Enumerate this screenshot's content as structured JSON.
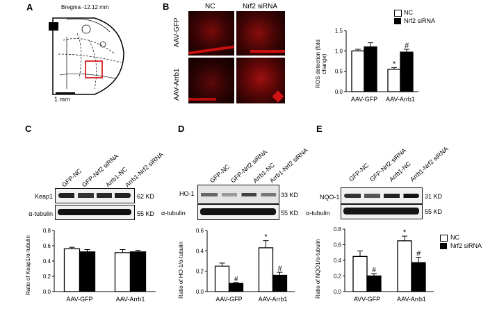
{
  "panelA": {
    "letter": "A",
    "bregma": "Bregma -12.12 mm",
    "scale": "1 mm"
  },
  "panelB": {
    "letter": "B",
    "cols": [
      "NC",
      "Nrf2 siRNA"
    ],
    "rows": [
      "AAV-GFP",
      "AAV-Arrb1"
    ],
    "legend": [
      "NC",
      "Nrf2 siRNA"
    ],
    "chart_data": {
      "type": "bar",
      "categories": [
        "AAV-GFP",
        "AAV-Arrb1"
      ],
      "series": [
        {
          "name": "NC",
          "values": [
            1.0,
            0.55
          ],
          "errors": [
            0.04,
            0.04
          ]
        },
        {
          "name": "Nrf2 siRNA",
          "values": [
            1.1,
            0.97
          ],
          "errors": [
            0.1,
            0.07
          ]
        }
      ],
      "ylabel": "ROS detection (fold change)",
      "ylim": [
        0,
        1.5
      ],
      "yticks": [
        "0.0",
        "0.5",
        "1.0",
        "1.5"
      ],
      "marks": [
        "*",
        "#"
      ]
    }
  },
  "panelC": {
    "letter": "C",
    "lanes": [
      "GFP-NC",
      "GFP-Nrf2 siRNA",
      "Arrb1-NC",
      "Arrb1-Nrf2 siRNA"
    ],
    "bands": [
      {
        "name": "Keap1",
        "kd": "62 KD"
      },
      {
        "name": "α-tubulin",
        "kd": "55 KD"
      }
    ],
    "chart_data": {
      "type": "bar",
      "categories": [
        "AAV-GFP",
        "AAV-Arrb1"
      ],
      "series": [
        {
          "name": "NC",
          "values": [
            0.56,
            0.51
          ],
          "errors": [
            0.02,
            0.04
          ]
        },
        {
          "name": "Nrf2 siRNA",
          "values": [
            0.52,
            0.52
          ],
          "errors": [
            0.03,
            0.02
          ]
        }
      ],
      "ylabel": "Ratio of Keap1/α-tubulin",
      "ylim": [
        0,
        0.8
      ],
      "yticks": [
        "0.0",
        "0.2",
        "0.4",
        "0.6",
        "0.8"
      ]
    }
  },
  "panelD": {
    "letter": "D",
    "lanes": [
      "GFP-NC",
      "GFP-Nrf2 siRNA",
      "Arrb1-NC",
      "Arrb1-Nrf2 siRNA"
    ],
    "bands": [
      {
        "name": "HO-1",
        "kd": "33 KD"
      },
      {
        "name": "α-tubulin",
        "kd": "55 KD"
      }
    ],
    "chart_data": {
      "type": "bar",
      "categories": [
        "AAV-GFP",
        "AAV-Arrb1"
      ],
      "series": [
        {
          "name": "NC",
          "values": [
            0.25,
            0.43
          ],
          "errors": [
            0.03,
            0.07
          ]
        },
        {
          "name": "Nrf2 siRNA",
          "values": [
            0.08,
            0.16
          ],
          "errors": [
            0.01,
            0.03
          ]
        }
      ],
      "ylabel": "Ratio of HO-1/α-tubulin",
      "ylim": [
        0,
        0.6
      ],
      "yticks": [
        "0.0",
        "0.2",
        "0.4",
        "0.6"
      ],
      "marks": [
        "*",
        "#"
      ]
    }
  },
  "panelE": {
    "letter": "E",
    "lanes": [
      "GFP-NC",
      "GFP-Nrf2 siRNA",
      "Arrb1-NC",
      "Arrb1-Nrf2 siRNA"
    ],
    "bands": [
      {
        "name": "NQO-1",
        "kd": "31 KD"
      },
      {
        "name": "α-tubulin",
        "kd": "55 KD"
      }
    ],
    "legend": [
      "NC",
      "Nrf2 siRNA"
    ],
    "chart_data": {
      "type": "bar",
      "categories": [
        "AVV-GFP",
        "AAV-Arrb1"
      ],
      "series": [
        {
          "name": "NC",
          "values": [
            0.45,
            0.65
          ],
          "errors": [
            0.07,
            0.06
          ]
        },
        {
          "name": "Nrf2 siRNA",
          "values": [
            0.2,
            0.37
          ],
          "errors": [
            0.03,
            0.07
          ]
        }
      ],
      "ylabel": "Ratio of NQO1/α-tubulin",
      "ylim": [
        0,
        0.8
      ],
      "yticks": [
        "0.0",
        "0.2",
        "0.4",
        "0.6",
        "0.8"
      ],
      "marks": [
        "*",
        "#"
      ]
    }
  }
}
